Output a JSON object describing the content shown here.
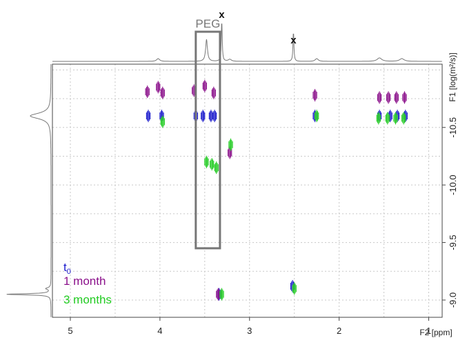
{
  "chart_data": {
    "type": "2D NMR DOSY contour plot",
    "x_axis": {
      "label": "F2 [ppm]",
      "range": [
        5.2,
        0.85
      ],
      "ticks": [
        5,
        4,
        3,
        2,
        1
      ],
      "tick_labels": [
        "5",
        "4",
        "3",
        "2",
        "1"
      ]
    },
    "y_axis": {
      "label": "F1 [log(m²/s)]",
      "range": [
        -11.05,
        -8.85
      ],
      "ticks": [
        -10.5,
        -10.0,
        -9.5,
        -9.0
      ],
      "tick_labels": [
        "-10.5",
        "-10.0",
        "-9.5",
        "-9.0"
      ]
    },
    "grid": true,
    "annotations": {
      "peg_label": "PEG",
      "peg_box": {
        "x_range": [
          3.6,
          3.33
        ],
        "y_range": [
          -10.95,
          -9.45
        ]
      },
      "x_markers": [
        {
          "text": "x",
          "x": 3.31
        },
        {
          "text": "x",
          "x": 2.51
        }
      ]
    },
    "legend": {
      "placement": "bottom-left",
      "t0_main": "t",
      "t0_sub": "0",
      "month1": "1 month",
      "month3": "3 months"
    },
    "series": [
      {
        "name": "t0",
        "color": "#1a1acc",
        "points": [
          {
            "x": 4.13,
            "y": -10.6
          },
          {
            "x": 3.98,
            "y": -10.6
          },
          {
            "x": 3.6,
            "y": -10.6
          },
          {
            "x": 3.52,
            "y": -10.6
          },
          {
            "x": 3.43,
            "y": -10.6
          },
          {
            "x": 3.39,
            "y": -10.6
          },
          {
            "x": 2.27,
            "y": -10.6
          },
          {
            "x": 1.55,
            "y": -10.6
          },
          {
            "x": 1.43,
            "y": -10.6
          },
          {
            "x": 1.35,
            "y": -10.6
          },
          {
            "x": 1.26,
            "y": -10.6
          },
          {
            "x": 3.34,
            "y": -9.05
          },
          {
            "x": 2.52,
            "y": -9.12
          }
        ]
      },
      {
        "name": "1 month",
        "color": "#8a0f8a",
        "points": [
          {
            "x": 4.14,
            "y": -10.81
          },
          {
            "x": 4.02,
            "y": -10.85
          },
          {
            "x": 3.97,
            "y": -10.8
          },
          {
            "x": 3.62,
            "y": -10.82
          },
          {
            "x": 3.5,
            "y": -10.86
          },
          {
            "x": 3.4,
            "y": -10.8
          },
          {
            "x": 3.22,
            "y": -10.28
          },
          {
            "x": 2.27,
            "y": -10.78
          },
          {
            "x": 1.55,
            "y": -10.76
          },
          {
            "x": 1.45,
            "y": -10.76
          },
          {
            "x": 1.36,
            "y": -10.76
          },
          {
            "x": 1.27,
            "y": -10.76
          },
          {
            "x": 3.35,
            "y": -9.05
          }
        ]
      },
      {
        "name": "3 months",
        "color": "#22cc22",
        "points": [
          {
            "x": 3.97,
            "y": -10.55
          },
          {
            "x": 3.48,
            "y": -10.2
          },
          {
            "x": 3.42,
            "y": -10.18
          },
          {
            "x": 3.37,
            "y": -10.15
          },
          {
            "x": 3.21,
            "y": -10.35
          },
          {
            "x": 2.25,
            "y": -10.6
          },
          {
            "x": 1.56,
            "y": -10.58
          },
          {
            "x": 1.46,
            "y": -10.58
          },
          {
            "x": 1.37,
            "y": -10.58
          },
          {
            "x": 1.28,
            "y": -10.58
          },
          {
            "x": 3.31,
            "y": -9.05
          },
          {
            "x": 2.5,
            "y": -9.1
          }
        ]
      }
    ]
  }
}
